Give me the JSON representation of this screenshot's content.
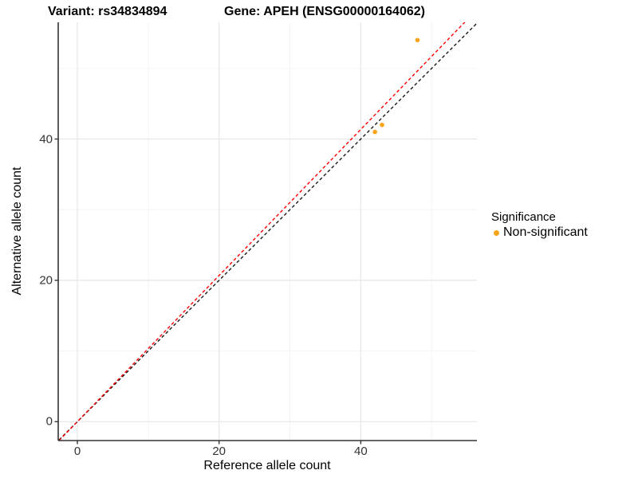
{
  "titles": {
    "variant": "Variant: rs34834894",
    "gene": "Gene: APEH (ENSG00000164062)"
  },
  "chart_data": {
    "type": "scatter",
    "title_left": "Variant: rs34834894",
    "title_right": "Gene: APEH (ENSG00000164062)",
    "xlabel": "Reference allele count",
    "ylabel": "Alternative allele count",
    "xlim": [
      -2.7,
      56.4
    ],
    "ylim": [
      -2.7,
      56.5
    ],
    "x_ticks": [
      0,
      20,
      40
    ],
    "y_ticks": [
      0,
      20,
      40
    ],
    "x_minor_ticks": [
      10,
      30,
      50
    ],
    "y_minor_ticks": [
      10,
      30,
      50
    ],
    "grid": true,
    "legend": {
      "title": "Significance",
      "position": "right",
      "items": [
        {
          "label": "Non-significant",
          "color": "#FAA419"
        }
      ]
    },
    "series": [
      {
        "name": "Non-significant",
        "color": "#FAA419",
        "points": [
          {
            "x": 48,
            "y": 54
          },
          {
            "x": 43,
            "y": 42
          },
          {
            "x": 42,
            "y": 41
          }
        ]
      }
    ],
    "lines": [
      {
        "name": "identity-line",
        "slope": 1.0,
        "intercept": 0,
        "color": "#1a1a1a",
        "style": "dashed"
      },
      {
        "name": "fit-line",
        "slope": 1.034,
        "intercept": 0,
        "color": "#ff0000",
        "style": "dashed"
      }
    ]
  },
  "colors": {
    "background": "#ffffff",
    "grid_major": "#e6e6e6",
    "grid_minor": "#f2f2f2",
    "axis_line": "#333333",
    "point": "#FAA419",
    "identity_line": "#1a1a1a",
    "fit_line": "#ff0000"
  }
}
